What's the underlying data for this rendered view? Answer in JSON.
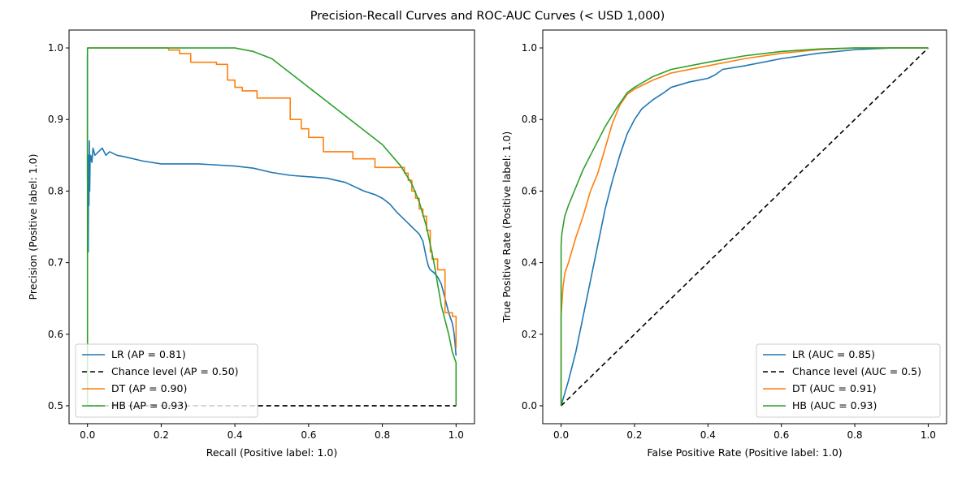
{
  "suptitle": "Precision-Recall Curves and ROC-AUC Curves (< USD 1,000)",
  "colors": {
    "LR": "#1f77b4",
    "DT": "#ff7f0e",
    "HB": "#2ca02c",
    "chance": "#000000"
  },
  "chart_data": [
    {
      "type": "line",
      "xlabel": "Recall (Positive label: 1.0)",
      "ylabel": "Precision (Positive label: 1.0)",
      "xlim": [
        -0.05,
        1.05
      ],
      "ylim": [
        0.475,
        1.025
      ],
      "xticks": [
        0.0,
        0.2,
        0.4,
        0.6,
        0.8,
        1.0
      ],
      "xtick_labels": [
        "0.0",
        "0.2",
        "0.4",
        "0.6",
        "0.8",
        "1.0"
      ],
      "yticks": [
        0.5,
        0.6,
        0.7,
        0.8,
        0.9,
        1.0
      ],
      "ytick_labels": [
        "0.5",
        "0.6",
        "0.7",
        "0.8",
        "0.9",
        "1.0"
      ],
      "grid": false,
      "legend_position": "lower-left",
      "series": [
        {
          "name": "LR (AP = 0.81)",
          "color": "#1f77b4",
          "style": "solid",
          "x": [
            0,
            0,
            0.002,
            0.003,
            0.004,
            0.005,
            0.006,
            0.007,
            0.009,
            0.012,
            0.015,
            0.02,
            0.03,
            0.04,
            0.05,
            0.06,
            0.08,
            0.1,
            0.15,
            0.2,
            0.3,
            0.4,
            0.45,
            0.5,
            0.55,
            0.6,
            0.65,
            0.7,
            0.75,
            0.78,
            0.8,
            0.82,
            0.84,
            0.86,
            0.87,
            0.88,
            0.89,
            0.9,
            0.91,
            0.92,
            0.925,
            0.93,
            0.94,
            0.95,
            0.96,
            0.97,
            0.98,
            0.99,
            0.995,
            1.0
          ],
          "y": [
            0.99,
            0.82,
            0.715,
            0.85,
            0.78,
            0.87,
            0.8,
            0.84,
            0.85,
            0.84,
            0.86,
            0.85,
            0.855,
            0.86,
            0.85,
            0.855,
            0.85,
            0.848,
            0.842,
            0.838,
            0.838,
            0.835,
            0.832,
            0.826,
            0.822,
            0.82,
            0.818,
            0.812,
            0.8,
            0.795,
            0.79,
            0.782,
            0.77,
            0.76,
            0.755,
            0.75,
            0.745,
            0.74,
            0.73,
            0.705,
            0.695,
            0.69,
            0.686,
            0.68,
            0.67,
            0.65,
            0.63,
            0.615,
            0.6,
            0.57
          ]
        },
        {
          "name": "Chance level (AP = 0.50)",
          "color": "#000000",
          "style": "dashed",
          "x": [
            0,
            1
          ],
          "y": [
            0.5,
            0.5
          ]
        },
        {
          "name": "DT (AP = 0.90)",
          "color": "#ff7f0e",
          "style": "step",
          "x": [
            0,
            0.22,
            0.25,
            0.28,
            0.35,
            0.38,
            0.4,
            0.42,
            0.46,
            0.55,
            0.58,
            0.6,
            0.64,
            0.72,
            0.78,
            0.86,
            0.87,
            0.88,
            0.89,
            0.9,
            0.91,
            0.92,
            0.93,
            0.935,
            0.95,
            0.97,
            0.99,
            1.0
          ],
          "y": [
            1.0,
            0.997,
            0.992,
            0.98,
            0.977,
            0.955,
            0.945,
            0.94,
            0.93,
            0.9,
            0.887,
            0.875,
            0.855,
            0.845,
            0.833,
            0.825,
            0.815,
            0.8,
            0.79,
            0.775,
            0.765,
            0.745,
            0.715,
            0.705,
            0.69,
            0.63,
            0.625,
            0.58
          ]
        },
        {
          "name": "HB (AP = 0.93)",
          "color": "#2ca02c",
          "style": "solid",
          "x": [
            0,
            0,
            0.1,
            0.2,
            0.3,
            0.4,
            0.42,
            0.45,
            0.5,
            0.55,
            0.6,
            0.65,
            0.7,
            0.75,
            0.8,
            0.85,
            0.88,
            0.9,
            0.92,
            0.94,
            0.96,
            0.98,
            0.99,
            1.0,
            1.0
          ],
          "y": [
            0.5,
            1.0,
            1.0,
            1.0,
            1.0,
            1.0,
            0.998,
            0.995,
            0.985,
            0.965,
            0.945,
            0.925,
            0.905,
            0.885,
            0.865,
            0.835,
            0.81,
            0.785,
            0.75,
            0.7,
            0.64,
            0.6,
            0.575,
            0.56,
            0.5
          ]
        }
      ]
    },
    {
      "type": "line",
      "xlabel": "False Positive Rate (Positive label: 1.0)",
      "ylabel": "True Positive Rate (Positive label: 1.0)",
      "xlim": [
        -0.05,
        1.05
      ],
      "ylim": [
        -0.05,
        1.05
      ],
      "xticks": [
        0.0,
        0.2,
        0.4,
        0.6,
        0.8,
        1.0
      ],
      "xtick_labels": [
        "0.0",
        "0.2",
        "0.4",
        "0.6",
        "0.8",
        "1.0"
      ],
      "yticks": [
        0.0,
        0.2,
        0.4,
        0.6,
        0.8,
        1.0
      ],
      "ytick_labels": [
        "0.0",
        "0.2",
        "0.4",
        "0.6",
        "0.8",
        "1.0"
      ],
      "grid": false,
      "legend_position": "lower-right",
      "series": [
        {
          "name": "LR (AUC = 0.85)",
          "color": "#1f77b4",
          "style": "solid",
          "x": [
            0,
            0.02,
            0.04,
            0.06,
            0.08,
            0.1,
            0.12,
            0.14,
            0.16,
            0.18,
            0.2,
            0.22,
            0.25,
            0.28,
            0.3,
            0.35,
            0.4,
            0.42,
            0.44,
            0.5,
            0.6,
            0.7,
            0.8,
            0.9,
            1.0
          ],
          "y": [
            0,
            0.07,
            0.15,
            0.25,
            0.35,
            0.45,
            0.55,
            0.63,
            0.7,
            0.76,
            0.8,
            0.83,
            0.855,
            0.875,
            0.89,
            0.905,
            0.915,
            0.925,
            0.94,
            0.95,
            0.97,
            0.985,
            0.995,
            1.0,
            1.0
          ]
        },
        {
          "name": "Chance level (AUC = 0.5)",
          "color": "#000000",
          "style": "dashed",
          "x": [
            0,
            1
          ],
          "y": [
            0,
            1
          ]
        },
        {
          "name": "DT (AUC = 0.91)",
          "color": "#ff7f0e",
          "style": "solid",
          "x": [
            0,
            0,
            0.005,
            0.01,
            0.02,
            0.04,
            0.06,
            0.08,
            0.1,
            0.12,
            0.14,
            0.16,
            0.18,
            0.2,
            0.25,
            0.3,
            0.4,
            0.5,
            0.6,
            0.7,
            0.8,
            1.0
          ],
          "y": [
            0,
            0.25,
            0.33,
            0.37,
            0.4,
            0.47,
            0.53,
            0.6,
            0.65,
            0.72,
            0.79,
            0.84,
            0.87,
            0.885,
            0.91,
            0.93,
            0.95,
            0.97,
            0.985,
            0.995,
            1.0,
            1.0
          ]
        },
        {
          "name": "HB (AUC = 0.93)",
          "color": "#2ca02c",
          "style": "solid",
          "x": [
            0,
            0,
            0.002,
            0.005,
            0.01,
            0.02,
            0.04,
            0.06,
            0.08,
            0.1,
            0.12,
            0.15,
            0.18,
            0.2,
            0.25,
            0.3,
            0.4,
            0.5,
            0.6,
            0.7,
            0.8,
            0.9,
            1.0
          ],
          "y": [
            0,
            0.45,
            0.48,
            0.5,
            0.53,
            0.56,
            0.61,
            0.66,
            0.7,
            0.74,
            0.78,
            0.83,
            0.875,
            0.89,
            0.92,
            0.94,
            0.96,
            0.978,
            0.99,
            0.997,
            1.0,
            1.0,
            1.0
          ]
        }
      ]
    }
  ]
}
